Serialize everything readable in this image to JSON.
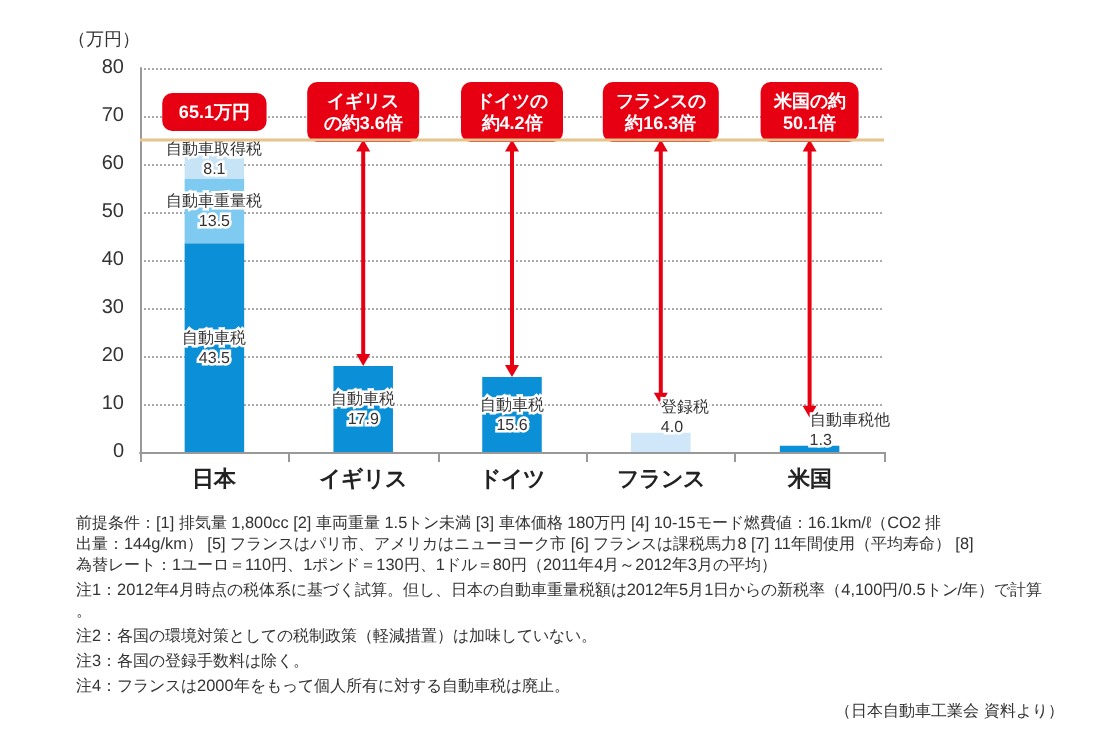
{
  "chart_data": {
    "type": "bar",
    "stacked": true,
    "ylabel": "（万円）",
    "categories": [
      "日本",
      "イギリス",
      "ドイツ",
      "フランス",
      "米国"
    ],
    "series": [
      {
        "name": "自動車税",
        "color": "#0b8fd6",
        "values": [
          43.5,
          17.9,
          15.6,
          null,
          null
        ],
        "value_labels": [
          "43.5",
          "17.9",
          "15.6",
          null,
          null
        ]
      },
      {
        "name": "自動車重量税",
        "color": "#7fcaf0",
        "values": [
          13.5,
          null,
          null,
          null,
          null
        ],
        "value_labels": [
          "13.5",
          null,
          null,
          null,
          null
        ]
      },
      {
        "name": "自動車取得税",
        "color": "#c6e4f6",
        "values": [
          8.1,
          null,
          null,
          null,
          null
        ],
        "value_labels": [
          "8.1",
          null,
          null,
          null,
          null
        ]
      },
      {
        "name": "登録税",
        "color": "#cfe7f8",
        "values": [
          null,
          null,
          null,
          4.0,
          null
        ],
        "value_labels": [
          null,
          null,
          null,
          "4.0",
          null
        ]
      },
      {
        "name": "自動車税他",
        "color": "#0b8fd6",
        "values": [
          null,
          null,
          null,
          null,
          1.3
        ],
        "value_labels": [
          null,
          null,
          null,
          null,
          "1.3"
        ]
      }
    ],
    "ylim": [
      0,
      80
    ],
    "yticks": [
      0,
      10,
      20,
      30,
      40,
      50,
      60,
      70,
      80
    ],
    "grid": "y",
    "legend": false,
    "ref_lines": [
      {
        "axis": "y",
        "value": 65.1,
        "color": "#e6c48a"
      }
    ],
    "annotations": [
      "65.1万円",
      "イギリスの約3.6倍",
      "ドイツの約4.2倍",
      "フランスの約16.3倍",
      "米国の約50.1倍",
      "前提条件：[1] 排気量 1,800cc [2] 車両重量 1.5トン未満 [3] 車体価格 180万円 [4] 10-15モード燃費値：16.1km/ℓ（CO2 排出量：144g/km） [5] フランスはパリ市、アメリカはニューヨーク市 [6] フランスは課税馬力8 [7] 11年間使用（平均寿命） [8] 為替レート：1ユーロ＝110円、1ポンド＝130円、1ドル＝80円（2011年4月～2012年3月の平均）",
      "注1：2012年4月時点の税体系に基づく試算。但し、日本の自動車重量税額は2012年5月1日からの新税率（4,100円/0.5トン/年）で計算。",
      "注2：各国の環境対策としての税制政策（軽減措置）は加味していない。",
      "注3：各国の登録手数料は除く。",
      "注4：フランスは2000年をもって個人所有に対する自動車税は廃止。",
      "（日本自動車工業会 資料より）"
    ]
  }
}
